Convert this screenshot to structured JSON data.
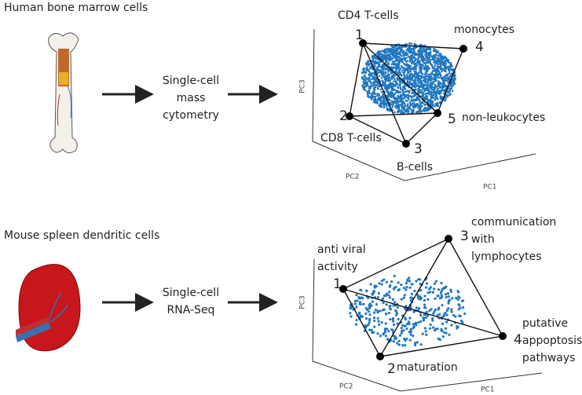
{
  "panels": [
    {
      "title": "Human bone marrow cells",
      "method": [
        "Single-cell",
        "mass",
        "cytometry"
      ],
      "axes": {
        "x": "PC1",
        "y": "PC2",
        "z": "PC3"
      },
      "vertices": [
        {
          "number": "1",
          "label": [
            "CD4 T-cells"
          ]
        },
        {
          "number": "2",
          "label": [
            "CD8 T-cells"
          ]
        },
        {
          "number": "3",
          "label": [
            "B-cells"
          ]
        },
        {
          "number": "4",
          "label": [
            "monocytes"
          ]
        },
        {
          "number": "5",
          "label": [
            "non-leukocytes"
          ]
        }
      ]
    },
    {
      "title": "Mouse spleen dendritic cells",
      "method": [
        "Single-cell",
        "RNA-Seq"
      ],
      "axes": {
        "x": "PC1",
        "y": "PC2",
        "z": "PC3"
      },
      "vertices": [
        {
          "number": "1",
          "label": [
            "anti viral",
            "activity"
          ]
        },
        {
          "number": "2",
          "label": [
            "maturation"
          ]
        },
        {
          "number": "3",
          "label": [
            "communication",
            "with",
            "lymphocytes"
          ]
        },
        {
          "number": "4",
          "label": [
            "putative",
            "appoptosis",
            "pathways"
          ]
        }
      ]
    }
  ]
}
